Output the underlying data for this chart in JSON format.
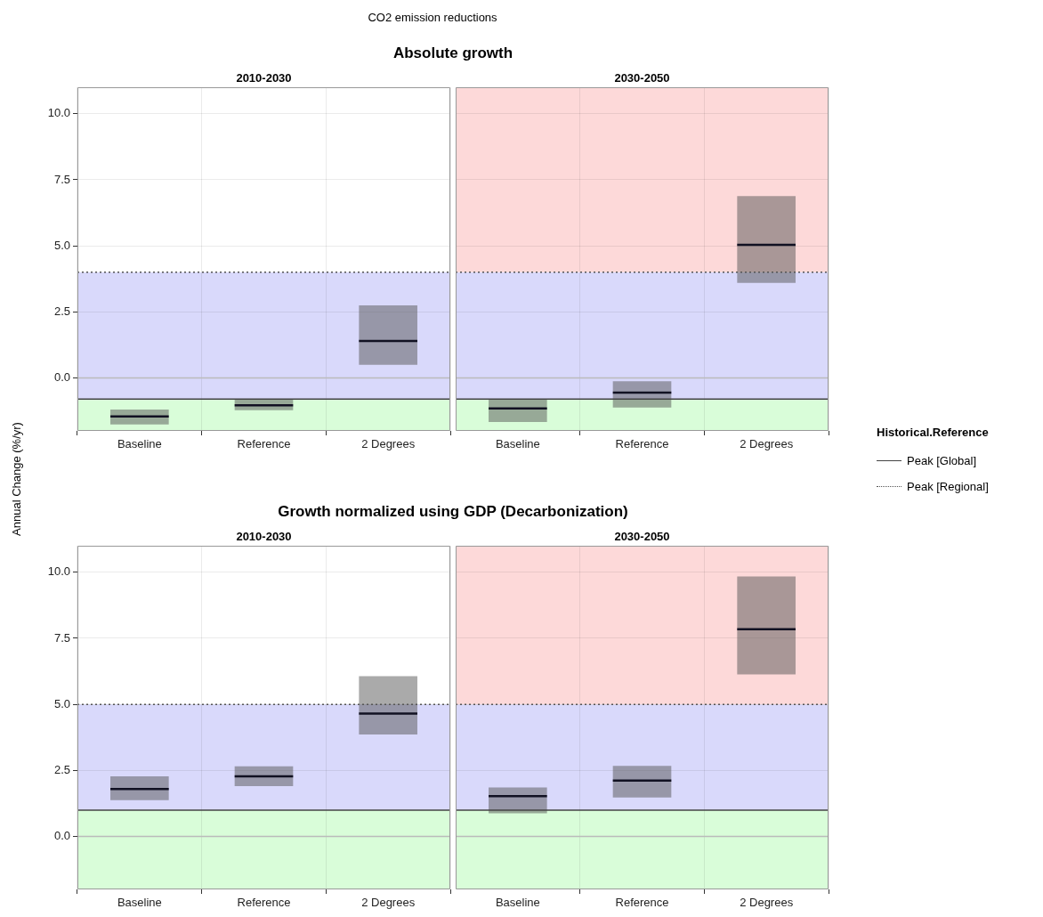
{
  "chart_data": [
    {
      "type": "box",
      "title": "Absolute growth",
      "subtitle": "2010-2030",
      "ylabel": "Annual Change (%/yr)",
      "annotations": [
        "CO2 emission reductions"
      ],
      "categories": [
        "Baseline",
        "Reference",
        "2 Degrees"
      ],
      "grid": true,
      "ylim": [
        -2,
        11
      ],
      "yticks": [
        {
          "value": 0,
          "label": "0.0"
        },
        {
          "value": 2.5,
          "label": "2.5"
        },
        {
          "value": 5,
          "label": "5.0"
        },
        {
          "value": 7.5,
          "label": "7.5"
        },
        {
          "value": 10,
          "label": "10.0"
        }
      ],
      "series": [
        {
          "color": "#555555",
          "boxes": [
            {
              "low": -1.76,
              "q1": -1.76,
              "median": -1.45,
              "q3": -1.19,
              "high": -1.19
            },
            {
              "low": -1.22,
              "q1": -1.22,
              "median": -1.03,
              "q3": -0.81,
              "high": -0.81
            },
            {
              "low": 0.5,
              "q1": 0.5,
              "median": 1.4,
              "q3": 2.75,
              "high": 2.75
            }
          ]
        }
      ],
      "bands": [
        {
          "axis": "y",
          "from": -2,
          "to": -0.8,
          "color": "#d9fdd9"
        },
        {
          "axis": "y",
          "from": -0.8,
          "to": 4,
          "color": "#d9d9fb"
        }
      ],
      "ref_lines": [
        {
          "axis": "y",
          "value": 0,
          "color": "#bbbbbb",
          "line_style": "solid"
        },
        {
          "axis": "y",
          "value": -0.8,
          "color": "#444444",
          "line_style": "solid"
        },
        {
          "axis": "y",
          "value": 4,
          "color": "#555555",
          "line_style": "dotted"
        }
      ]
    },
    {
      "type": "box",
      "subtitle": "2030-2050",
      "categories": [
        "Baseline",
        "Reference",
        "2 Degrees"
      ],
      "grid": true,
      "tick_labels": "x",
      "ylim": [
        -2,
        11
      ],
      "yticks": [
        0,
        2.5,
        5,
        7.5,
        10
      ],
      "legend": "right",
      "legend_title": "Historical.Reference",
      "series": [
        {
          "color": "#555555",
          "boxes": [
            {
              "low": -1.66,
              "q1": -1.66,
              "median": -1.15,
              "q3": -0.8,
              "high": -0.8
            },
            {
              "low": -1.12,
              "q1": -1.12,
              "median": -0.55,
              "q3": -0.12,
              "high": -0.12
            },
            {
              "low": 3.6,
              "q1": 3.6,
              "median": 5.04,
              "q3": 6.88,
              "high": 6.88
            }
          ]
        }
      ],
      "bands": [
        {
          "axis": "y",
          "from": -2,
          "to": -0.8,
          "color": "#d9fdd9"
        },
        {
          "axis": "y",
          "from": -0.8,
          "to": 4,
          "color": "#d9d9fb"
        },
        {
          "axis": "y",
          "from": 4,
          "to": 11,
          "color": "#fdd9d9"
        }
      ],
      "ref_lines": [
        {
          "axis": "y",
          "value": 0,
          "color": "#bbbbbb",
          "line_style": "solid"
        },
        {
          "axis": "y",
          "value": -0.8,
          "color": "#444444",
          "line_style": "solid",
          "label": "Peak [Global]"
        },
        {
          "axis": "y",
          "value": 4,
          "color": "#555555",
          "line_style": "dotted",
          "label": "Peak [Regional]"
        }
      ]
    },
    {
      "type": "box",
      "title": "Growth normalized using GDP (Decarbonization)",
      "subtitle": "2010-2030",
      "categories": [
        "Baseline",
        "Reference",
        "2 Degrees"
      ],
      "grid": true,
      "ylim": [
        -2,
        11
      ],
      "yticks": [
        {
          "value": 0,
          "label": "0.0"
        },
        {
          "value": 2.5,
          "label": "2.5"
        },
        {
          "value": 5,
          "label": "5.0"
        },
        {
          "value": 7.5,
          "label": "7.5"
        },
        {
          "value": 10,
          "label": "10.0"
        }
      ],
      "series": [
        {
          "color": "#555555",
          "boxes": [
            {
              "low": 1.38,
              "q1": 1.38,
              "median": 1.8,
              "q3": 2.28,
              "high": 2.28
            },
            {
              "low": 1.91,
              "q1": 1.91,
              "median": 2.28,
              "q3": 2.66,
              "high": 2.66
            },
            {
              "low": 3.86,
              "q1": 3.86,
              "median": 4.65,
              "q3": 6.07,
              "high": 6.07
            }
          ]
        }
      ],
      "bands": [
        {
          "axis": "y",
          "from": -2,
          "to": 1,
          "color": "#d9fdd9"
        },
        {
          "axis": "y",
          "from": 1,
          "to": 5,
          "color": "#d9d9fb"
        }
      ],
      "ref_lines": [
        {
          "axis": "y",
          "value": 0,
          "color": "#bbbbbb",
          "line_style": "solid"
        },
        {
          "axis": "y",
          "value": 1,
          "color": "#444444",
          "line_style": "solid"
        },
        {
          "axis": "y",
          "value": 5,
          "color": "#555555",
          "line_style": "dotted"
        }
      ]
    },
    {
      "type": "box",
      "subtitle": "2030-2050",
      "categories": [
        "Baseline",
        "Reference",
        "2 Degrees"
      ],
      "grid": true,
      "tick_labels": "x",
      "ylim": [
        -2,
        11
      ],
      "yticks": [
        0,
        2.5,
        5,
        7.5,
        10
      ],
      "series": [
        {
          "color": "#555555",
          "boxes": [
            {
              "low": 0.88,
              "q1": 0.88,
              "median": 1.53,
              "q3": 1.86,
              "high": 1.86
            },
            {
              "low": 1.48,
              "q1": 1.48,
              "median": 2.12,
              "q3": 2.67,
              "high": 2.67
            },
            {
              "low": 6.13,
              "q1": 6.13,
              "median": 7.84,
              "q3": 9.84,
              "high": 9.84
            }
          ]
        }
      ],
      "bands": [
        {
          "axis": "y",
          "from": -2,
          "to": 1,
          "color": "#d9fdd9"
        },
        {
          "axis": "y",
          "from": 1,
          "to": 5,
          "color": "#d9d9fb"
        },
        {
          "axis": "y",
          "from": 5,
          "to": 11,
          "color": "#fdd9d9"
        }
      ],
      "ref_lines": [
        {
          "axis": "y",
          "value": 0,
          "color": "#bbbbbb",
          "line_style": "solid"
        },
        {
          "axis": "y",
          "value": 1,
          "color": "#444444",
          "line_style": "solid"
        },
        {
          "axis": "y",
          "value": 5,
          "color": "#555555",
          "line_style": "dotted"
        }
      ]
    }
  ]
}
